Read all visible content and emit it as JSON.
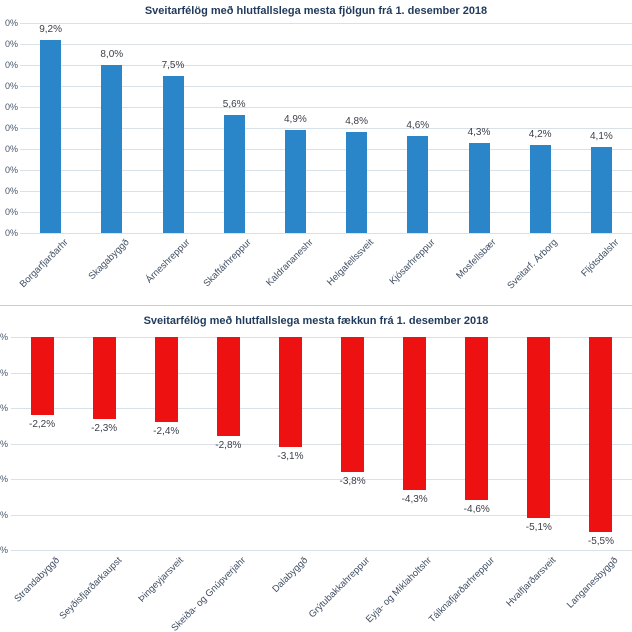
{
  "page": {
    "background_color": "#ffffff",
    "title_color": "#1f3a5c",
    "gridline_color": "#d9e1e8",
    "data_label_color": "#3c3f49",
    "category_label_color": "#3f4e63"
  },
  "chart_data": [
    {
      "type": "bar",
      "title": "Sveitarfélög með hlutfallslega mesta fjölgun frá 1. desember 2018",
      "categories": [
        "Borgarfjarðarhr",
        "Skagabyggð",
        "Árneshreppur",
        "Skaftárhreppur",
        "Kaldrananeshr",
        "Helgafellssveit",
        "Kjósarhreppur",
        "Mosfellsbær",
        "Sveitarf. Árborg",
        "Fljótsdalshr"
      ],
      "values": [
        9.2,
        8.0,
        7.5,
        5.6,
        4.9,
        4.8,
        4.6,
        4.3,
        4.2,
        4.1
      ],
      "data_labels": [
        "9,2%",
        "8,0%",
        "7,5%",
        "5,6%",
        "4,9%",
        "4,8%",
        "4,6%",
        "4,3%",
        "4,2%",
        "4,1%"
      ],
      "xlabel": "",
      "ylabel": "",
      "ylim": [
        0,
        10
      ],
      "y_tick_step": 1,
      "y_tick_count": 11,
      "y_tick_visible_text": "0%",
      "y_tick_note": "axis labels clipped at left image edge",
      "bar_color": "#2a86c8",
      "grid": true,
      "legend": "none",
      "bar_direction": "up"
    },
    {
      "type": "bar",
      "title": "Sveitarfélög með hlutfallslega mesta fækkun frá 1. desember 2018",
      "categories": [
        "Strandabyggð",
        "Seyðisfjarðarkaupst",
        "Þingeyjarsveit",
        "Skeiða- og Gnúpverjahr",
        "Dalabyggð",
        "Grýtubakkahreppur",
        "Eyja- og Miklaholtshr",
        "Tálknafjarðarhreppur",
        "Hvalfjarðarsveit",
        "Langanesbyggð"
      ],
      "values": [
        -2.2,
        -2.3,
        -2.4,
        -2.8,
        -3.1,
        -3.8,
        -4.3,
        -4.6,
        -5.1,
        -5.5
      ],
      "data_labels": [
        "-2,2%",
        "-2,3%",
        "-2,4%",
        "-2,8%",
        "-3,1%",
        "-3,8%",
        "-4,3%",
        "-4,6%",
        "-5,1%",
        "-5,5%"
      ],
      "xlabel": "",
      "ylabel": "",
      "ylim": [
        -6,
        0
      ],
      "y_tick_step": 1,
      "y_tick_count": 7,
      "y_tick_visible_text": "%",
      "y_tick_note": "axis labels clipped at left image edge",
      "bar_color": "#ee1111",
      "grid": true,
      "legend": "none",
      "bar_direction": "down"
    }
  ]
}
